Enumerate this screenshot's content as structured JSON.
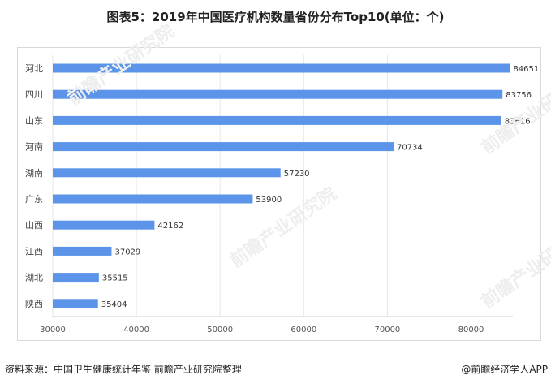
{
  "title": "图表5：2019年中国医疗机构数量省份分布Top10(单位：个)",
  "source": "资料来源：中国卫生健康统计年鉴 前瞻产业研究院整理",
  "credit": "@前瞻经济学人APP",
  "watermark": "前瞻产业研究院",
  "chart_data": {
    "type": "bar",
    "orientation": "horizontal",
    "title": "图表5：2019年中国医疗机构数量省份分布Top10(单位：个)",
    "categories": [
      "河北",
      "四川",
      "山东",
      "河南",
      "湖南",
      "广东",
      "山西",
      "江西",
      "湖北",
      "陕西"
    ],
    "values": [
      84651,
      83756,
      83616,
      70734,
      57230,
      53900,
      42162,
      37029,
      35515,
      35404
    ],
    "xlim": [
      30000,
      85000
    ],
    "xticks": [
      30000,
      40000,
      50000,
      60000,
      70000,
      80000
    ],
    "bar_color": "#5b94e8",
    "grid": true
  }
}
